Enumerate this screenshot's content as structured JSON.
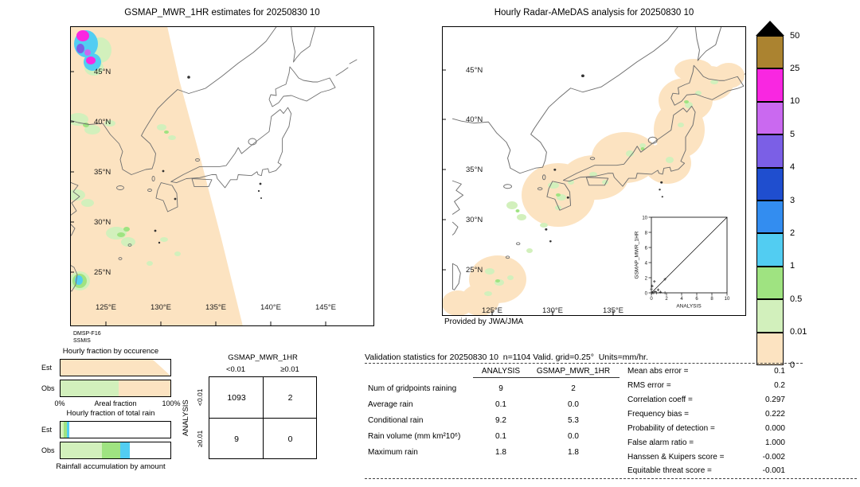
{
  "palette": {
    "peach": "#fce3c1",
    "pale_green": "#d2f0bc",
    "green": "#9fe381",
    "cyan": "#52cdf2",
    "blue": "#338df0",
    "dark_blue": "#1f4ecf",
    "violet": "#7b5fe6",
    "orchid": "#ca69f0",
    "magenta": "#f927e1",
    "dark_gold": "#ab8330"
  },
  "left_map": {
    "title": "GSMAP_MWR_1HR estimates for 20250830 10",
    "lat_ticks": [
      "45°N",
      "40°N",
      "35°N",
      "30°N",
      "25°N"
    ],
    "lon_ticks": [
      "125°E",
      "130°E",
      "135°E",
      "140°E",
      "145°E"
    ],
    "sensor_line1": "DMSP-F16",
    "sensor_line2": "SSMIS"
  },
  "right_map": {
    "title": "Hourly Radar-AMeDAS analysis for 20250830 10",
    "lat_ticks": [
      "45°N",
      "40°N",
      "35°N",
      "30°N",
      "25°N"
    ],
    "lon_ticks": [
      "125°E",
      "130°E",
      "135°E"
    ],
    "credit": "Provided by JWA/JMA",
    "inset": {
      "ylabel": "GSMAP_MWR_1HR",
      "xlabel": "ANALYSIS",
      "x_ticks": [
        "0",
        "2",
        "4",
        "6",
        "8",
        "10"
      ],
      "y_ticks": [
        "0",
        "2",
        "4",
        "6",
        "8",
        "10"
      ],
      "points": [
        [
          0.05,
          0
        ],
        [
          0.15,
          0.05
        ],
        [
          0.3,
          0
        ],
        [
          0.5,
          0.15
        ],
        [
          0.7,
          0
        ],
        [
          0.9,
          0.4
        ],
        [
          1.2,
          0.1
        ],
        [
          1.8,
          0
        ],
        [
          0,
          0.5
        ],
        [
          0.1,
          0.9
        ],
        [
          0.4,
          1.5
        ],
        [
          1.8,
          1.8
        ]
      ]
    }
  },
  "colorbar": {
    "labels": [
      "50",
      "25",
      "10",
      "5",
      "4",
      "3",
      "2",
      "1",
      "0.5",
      "0.01",
      "0"
    ],
    "colors": [
      "#ab8330",
      "#f927e1",
      "#ca69f0",
      "#7b5fe6",
      "#1f4ecf",
      "#338df0",
      "#52cdf2",
      "#9fe381",
      "#d2f0bc",
      "#fce3c1"
    ]
  },
  "fraction_charts": {
    "occurrence": {
      "title": "Hourly fraction by occurence",
      "axis_min": "0%",
      "axis_label": "Areal fraction",
      "axis_max": "100%",
      "rows": [
        {
          "label": "Est",
          "segments": [
            {
              "color": "#fce3c1",
              "pct": 100
            }
          ]
        },
        {
          "label": "Obs",
          "segments": [
            {
              "color": "#d2f0bc",
              "pct": 53
            },
            {
              "color": "#fce3c1",
              "pct": 47
            }
          ]
        }
      ]
    },
    "total_rain": {
      "title": "Hourly fraction of total rain",
      "caption": "Rainfall accumulation by amount",
      "rows": [
        {
          "label": "Est",
          "segments": [
            {
              "color": "#d2f0bc",
              "pct": 3
            },
            {
              "color": "#9fe381",
              "pct": 2.5
            },
            {
              "color": "#52cdf2",
              "pct": 2.5
            }
          ]
        },
        {
          "label": "Obs",
          "segments": [
            {
              "color": "#d2f0bc",
              "pct": 38
            },
            {
              "color": "#9fe381",
              "pct": 16
            },
            {
              "color": "#52cdf2",
              "pct": 9
            }
          ]
        }
      ]
    }
  },
  "contingency": {
    "title": "GSMAP_MWR_1HR",
    "col_headers": [
      "<0.01",
      "≥0.01"
    ],
    "row_axis_label": "ANALYSIS",
    "row_headers": [
      "<0.01",
      "≥0.01"
    ],
    "cells": [
      [
        "1093",
        "2"
      ],
      [
        "9",
        "0"
      ]
    ]
  },
  "stats": {
    "header": "Validation statistics for 20250830 10  n=1104 Valid. grid=0.25°  Units=mm/hr.",
    "table": {
      "col_headers": [
        "ANALYSIS",
        "GSMAP_MWR_1HR"
      ],
      "rows": [
        {
          "label": "Num of gridpoints raining",
          "analysis": "9",
          "gsmap": "2"
        },
        {
          "label": "Average rain",
          "analysis": "0.1",
          "gsmap": "0.0"
        },
        {
          "label": "Conditional rain",
          "analysis": "9.2",
          "gsmap": "5.3"
        },
        {
          "label": "Rain volume (mm km²10⁶)",
          "analysis": "0.1",
          "gsmap": "0.0"
        },
        {
          "label": "Maximum rain",
          "analysis": "1.8",
          "gsmap": "1.8"
        }
      ]
    },
    "scores": [
      {
        "label": "Mean abs error =",
        "value": "0.1"
      },
      {
        "label": "RMS error =",
        "value": "0.2"
      },
      {
        "label": "Correlation coeff =",
        "value": "0.297"
      },
      {
        "label": "Frequency bias =",
        "value": "0.222"
      },
      {
        "label": "Probability of detection =",
        "value": "0.000"
      },
      {
        "label": "False alarm ratio =",
        "value": "1.000"
      },
      {
        "label": "Hanssen & Kuipers score =",
        "value": "-0.002"
      },
      {
        "label": "Equitable threat score =",
        "value": "-0.001"
      }
    ]
  },
  "chart_data": [
    {
      "type": "heatmap",
      "subtype": "precipitation-map",
      "title": "GSMAP_MWR_1HR estimates for 20250830 10",
      "x_ticks": [
        "125°E",
        "130°E",
        "135°E",
        "140°E",
        "145°E"
      ],
      "y_ticks": [
        "45°N",
        "40°N",
        "35°N",
        "30°N",
        "25°N"
      ],
      "units": "mm/hr",
      "legend_levels": [
        0,
        0.01,
        0.5,
        1,
        2,
        3,
        4,
        5,
        10,
        25,
        50
      ],
      "sensor": "DMSP-F16 SSMIS"
    },
    {
      "type": "heatmap",
      "subtype": "precipitation-map",
      "title": "Hourly Radar-AMeDAS analysis for 20250830 10",
      "x_ticks": [
        "125°E",
        "130°E",
        "135°E"
      ],
      "y_ticks": [
        "45°N",
        "40°N",
        "35°N",
        "30°N",
        "25°N"
      ],
      "units": "mm/hr",
      "credit": "Provided by JWA/JMA"
    },
    {
      "type": "scatter",
      "xlabel": "ANALYSIS",
      "ylabel": "GSMAP_MWR_1HR",
      "xlim": [
        0,
        10
      ],
      "ylim": [
        0,
        10
      ],
      "diagonal": true,
      "x": [
        0.05,
        0.15,
        0.3,
        0.5,
        0.7,
        0.9,
        1.2,
        1.8,
        0,
        0.1,
        0.4,
        1.8
      ],
      "y": [
        0,
        0.05,
        0,
        0.15,
        0,
        0.4,
        0.1,
        0,
        0.5,
        0.9,
        1.5,
        1.8
      ]
    },
    {
      "type": "table",
      "title": "GSMAP_MWR_1HR vs ANALYSIS contingency",
      "col_headers": [
        "<0.01",
        "≥0.01"
      ],
      "row_headers": [
        "<0.01",
        "≥0.01"
      ],
      "values": [
        [
          1093,
          2
        ],
        [
          9,
          0
        ]
      ]
    },
    {
      "type": "bar",
      "title": "Hourly fraction by occurence",
      "categories": [
        "Est",
        "Obs"
      ],
      "series": [
        {
          "name": "<0.01",
          "values": [
            100,
            47
          ]
        },
        {
          "name": "0.01-0.5",
          "values": [
            0,
            53
          ]
        }
      ],
      "xlabel": "Areal fraction",
      "xlim": [
        "0%",
        "100%"
      ]
    },
    {
      "type": "bar",
      "title": "Hourly fraction of total rain",
      "categories": [
        "Est",
        "Obs"
      ],
      "series": [
        {
          "name": "0.01-0.5",
          "values": [
            3,
            38
          ]
        },
        {
          "name": "0.5-1",
          "values": [
            2.5,
            16
          ]
        },
        {
          "name": "1-2",
          "values": [
            2.5,
            9
          ]
        }
      ],
      "xlabel": "Rainfall accumulation by amount"
    },
    {
      "type": "table",
      "title": "Validation statistics for 20250830 10",
      "n": 1104,
      "grid": "0.25°",
      "units": "mm/hr",
      "col_headers": [
        "ANALYSIS",
        "GSMAP_MWR_1HR"
      ],
      "rows": [
        [
          "Num of gridpoints raining",
          9,
          2
        ],
        [
          "Average rain",
          0.1,
          0.0
        ],
        [
          "Conditional rain",
          9.2,
          5.3
        ],
        [
          "Rain volume (mm km²10⁶)",
          0.1,
          0.0
        ],
        [
          "Maximum rain",
          1.8,
          1.8
        ]
      ],
      "scores": {
        "Mean abs error": 0.1,
        "RMS error": 0.2,
        "Correlation coeff": 0.297,
        "Frequency bias": 0.222,
        "Probability of detection": 0.0,
        "False alarm ratio": 1.0,
        "Hanssen & Kuipers score": -0.002,
        "Equitable threat score": -0.001
      }
    }
  ]
}
